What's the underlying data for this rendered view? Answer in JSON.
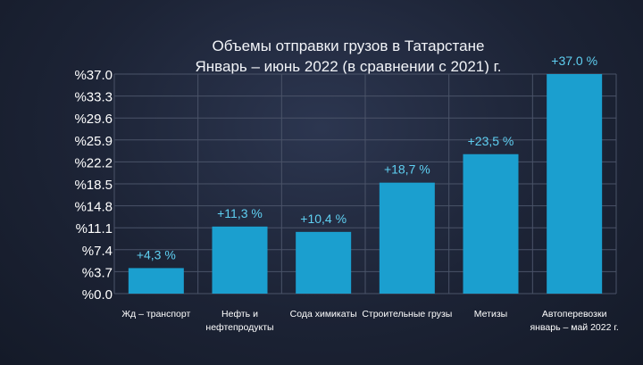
{
  "chart_data": {
    "type": "bar",
    "title": [
      "Объемы отправки грузов в Татарстане",
      "Январь – июнь 2022 (в сравнении с 2021) г."
    ],
    "categories": [
      [
        "Жд – транспорт"
      ],
      [
        "Нефть и",
        "нефтепродукты"
      ],
      [
        "Сода химикаты"
      ],
      [
        "Строительные грузы"
      ],
      [
        "Метизы"
      ],
      [
        "Автоперевозки",
        "январь – май 2022 г."
      ]
    ],
    "values": [
      4.3,
      11.3,
      10.4,
      18.7,
      23.5,
      37.0
    ],
    "data_labels": [
      "+4,3 %",
      "+11,3 %",
      "+10,4 %",
      "+18,7 %",
      "+23,5 %",
      "+37.0 %"
    ],
    "yticks": [
      "%0.0",
      "%3.7",
      "%7.4",
      "%11.1",
      "%14.8",
      "%18.5",
      "%22.2",
      "%25.9",
      "%29.6",
      "%33.3",
      "%37.0"
    ],
    "ylim": [
      0,
      37.0
    ],
    "xlabel": "",
    "ylabel": "",
    "grid": true
  },
  "colors": {
    "bar": "#1b9fcf",
    "label": "#5fd0f2",
    "grid": "#4a5368",
    "text": "#ffffff"
  }
}
